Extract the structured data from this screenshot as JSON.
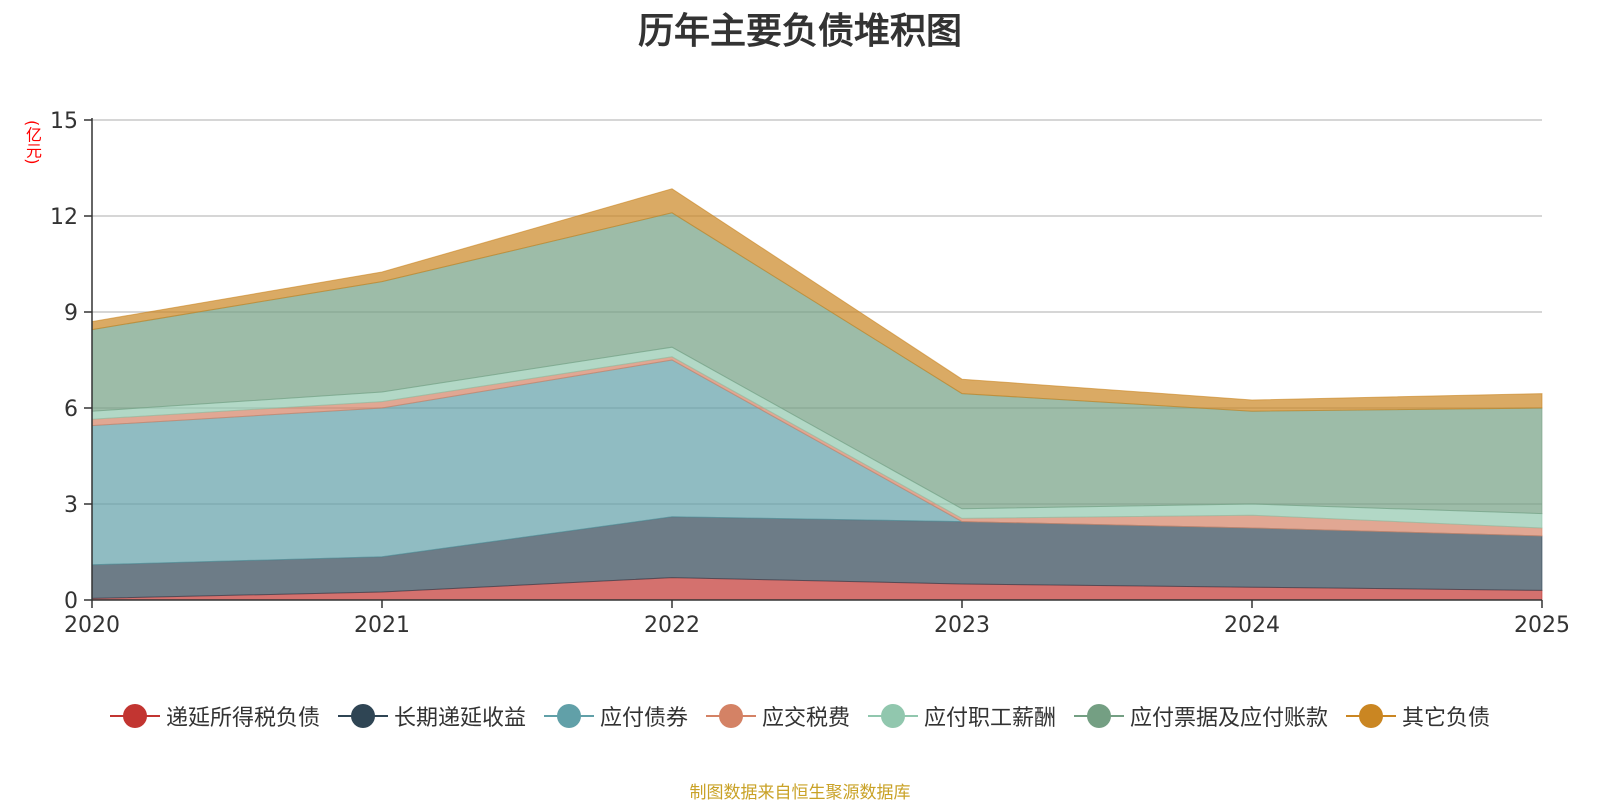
{
  "chart_data": {
    "type": "area",
    "stacked": true,
    "title": "历年主要负债堆积图",
    "ylabel": "(亿元)",
    "xlabel": "",
    "x": [
      "2020",
      "2021",
      "2022",
      "2023",
      "2024",
      "2025"
    ],
    "ylim": [
      0,
      15
    ],
    "yticks": [
      0,
      3,
      6,
      9,
      12,
      15
    ],
    "grid": true,
    "legend_position": "bottom",
    "series": [
      {
        "name": "递延所得税负债",
        "color": "#c23531",
        "values": [
          0.05,
          0.25,
          0.7,
          0.5,
          0.4,
          0.3
        ]
      },
      {
        "name": "长期递延收益",
        "color": "#2f4554",
        "values": [
          1.05,
          1.1,
          1.9,
          1.95,
          1.85,
          1.7
        ]
      },
      {
        "name": "应付债券",
        "color": "#61a0a8",
        "values": [
          4.35,
          4.65,
          4.9,
          0.0,
          0.0,
          0.0
        ]
      },
      {
        "name": "应交税费",
        "color": "#d48265",
        "values": [
          0.2,
          0.2,
          0.1,
          0.1,
          0.4,
          0.25
        ]
      },
      {
        "name": "应付职工薪酬",
        "color": "#91c7ae",
        "values": [
          0.25,
          0.3,
          0.3,
          0.3,
          0.35,
          0.45
        ]
      },
      {
        "name": "应付票据及应付账款",
        "color": "#749f83",
        "values": [
          2.55,
          3.45,
          4.2,
          3.6,
          2.9,
          3.3
        ]
      },
      {
        "name": "其它负债",
        "color": "#ca8622",
        "values": [
          0.25,
          0.3,
          0.75,
          0.45,
          0.35,
          0.45
        ]
      }
    ]
  },
  "source_note": "制图数据来自恒生聚源数据库"
}
